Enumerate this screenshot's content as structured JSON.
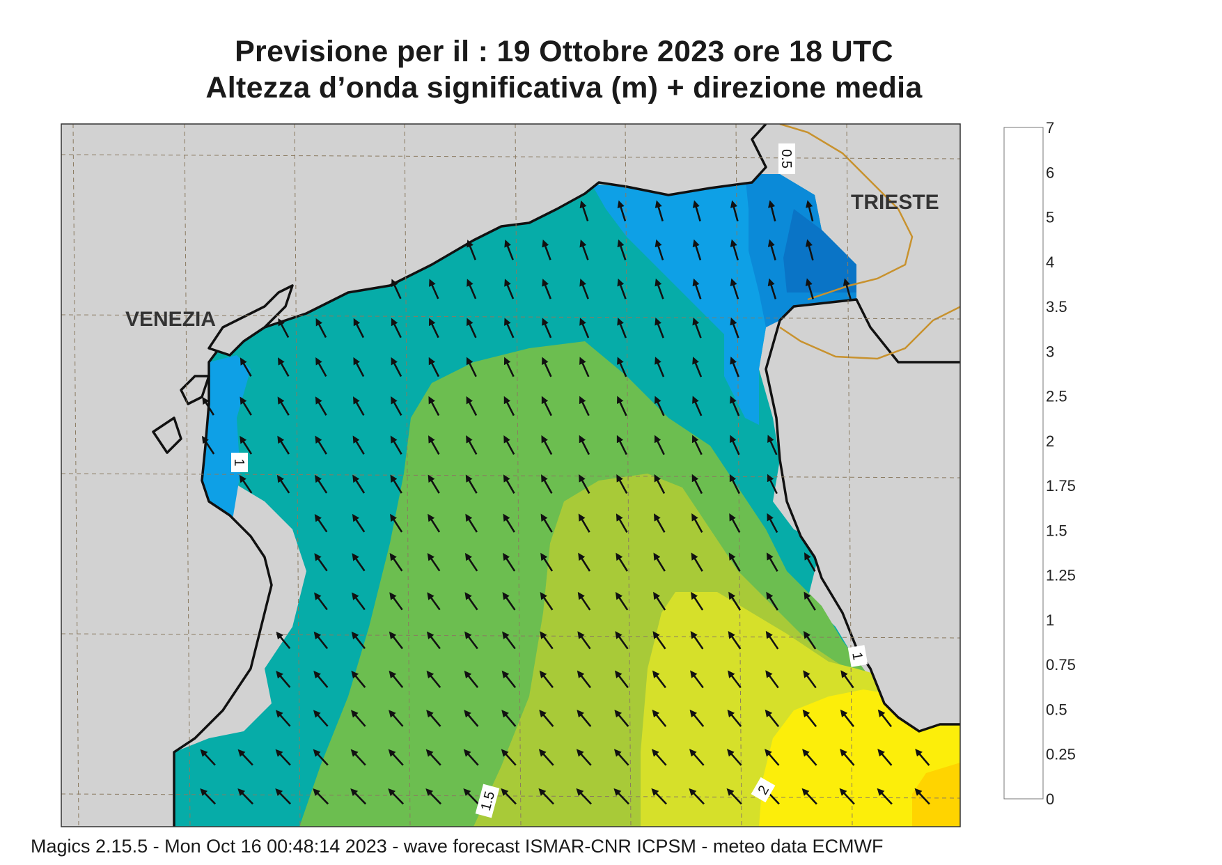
{
  "title_line1": "Previsione per il  :  19  Ottobre  2023   ore 18 UTC",
  "title_line2": "Altezza d’onda significativa (m) + direzione media",
  "footer": "Magics 2.15.5 - Mon Oct 16 00:48:14 2023 - wave forecast  ISMAR-CNR  ICPSM - meteo data   ECMWF",
  "cities": [
    {
      "name": "VENEZIA"
    },
    {
      "name": "TRIESTE"
    }
  ],
  "contour_labels": [
    "0.5",
    "1",
    "1",
    "1.5",
    "2"
  ],
  "colorbar": {
    "levels": [
      "0",
      "0.25",
      "0.5",
      "0.75",
      "1",
      "1.25",
      "1.5",
      "1.75",
      "2",
      "2.5",
      "3",
      "3.5",
      "4",
      "5",
      "6",
      "7"
    ],
    "colors": [
      "#0a5fb0",
      "#0a74c6",
      "#0b8ad8",
      "#0ea0e6",
      "#06aca8",
      "#6cbe50",
      "#a8ca38",
      "#d6e02a",
      "#fcee0a",
      "#ffd400",
      "#fbad18",
      "#f7921c",
      "#f47a22",
      "#ec2027",
      "#ec1560"
    ]
  },
  "colors": {
    "land": "#d2d2d2",
    "coast": "#111111",
    "border": "#c8922e",
    "grid": "#8a7a60"
  }
}
